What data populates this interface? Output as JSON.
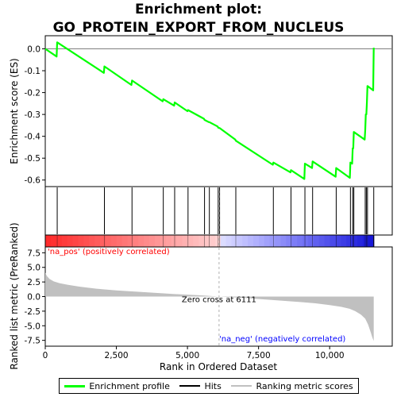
{
  "chart_data": {
    "type": "line",
    "title_line1": "Enrichment plot:",
    "title_line2": "GO_PROTEIN_EXPORT_FROM_NUCLEUS",
    "es_ylabel": "Enrichment score (ES)",
    "rank_ylabel": "Ranked list metric (PreRanked)",
    "xlabel": "Rank in Ordered Dataset",
    "x_ticks": [
      "0",
      "2,500",
      "5,000",
      "7,500",
      "10,000"
    ],
    "es_ticks": [
      "0.0",
      "-0.1",
      "-0.2",
      "-0.3",
      "-0.4",
      "-0.5",
      "-0.6"
    ],
    "rank_ticks": [
      "7.5",
      "5.0",
      "2.5",
      "0.0",
      "-2.5",
      "-5.0",
      "-7.5"
    ],
    "xlim": [
      0,
      12200
    ],
    "es_ylim": [
      -0.63,
      0.06
    ],
    "rank_ylim": [
      -8.5,
      8.5
    ],
    "n_genes": 11550,
    "zero_cross_rank": 6111,
    "zero_cross_label": "Zero cross at 6111",
    "pos_label": "'na_pos' (positively correlated)",
    "neg_label": "'na_neg' (negatively correlated)",
    "hits": [
      420,
      2080,
      3050,
      4150,
      4550,
      5020,
      5600,
      5770,
      6080,
      6130,
      6700,
      8020,
      8640,
      9130,
      9400,
      10230,
      10730,
      10810,
      10850,
      11250,
      11290,
      11330,
      11550
    ],
    "es_curve": {
      "x": [
        0,
        400,
        420,
        2060,
        2080,
        3030,
        3050,
        4130,
        4150,
        4530,
        4550,
        5000,
        5020,
        5580,
        5600,
        5750,
        5770,
        6060,
        6080,
        6110,
        6130,
        6680,
        6700,
        8000,
        8020,
        8620,
        8640,
        9110,
        9130,
        9380,
        9400,
        10210,
        10230,
        10710,
        10730,
        10790,
        10810,
        10830,
        10850,
        11230,
        11250,
        11270,
        11290,
        11310,
        11330,
        11530,
        11550
      ],
      "y": [
        0.0,
        -0.035,
        0.03,
        -0.11,
        -0.08,
        -0.165,
        -0.145,
        -0.24,
        -0.23,
        -0.26,
        -0.245,
        -0.285,
        -0.28,
        -0.32,
        -0.325,
        -0.335,
        -0.335,
        -0.355,
        -0.36,
        -0.362,
        -0.362,
        -0.415,
        -0.42,
        -0.53,
        -0.52,
        -0.565,
        -0.555,
        -0.595,
        -0.525,
        -0.545,
        -0.515,
        -0.585,
        -0.545,
        -0.59,
        -0.52,
        -0.525,
        -0.455,
        -0.455,
        -0.38,
        -0.415,
        -0.37,
        -0.3,
        -0.3,
        -0.245,
        -0.17,
        -0.19,
        0.005
      ]
    },
    "metric_curve": {
      "x": [
        0,
        60,
        150,
        300,
        500,
        800,
        1200,
        1800,
        2500,
        3500,
        4500,
        5500,
        6111,
        7000,
        8000,
        9000,
        9500,
        10000,
        10400,
        10700,
        10900,
        11100,
        11250,
        11350,
        11450,
        11500,
        11550
      ],
      "y": [
        4.1,
        3.5,
        3.0,
        2.6,
        2.3,
        2.0,
        1.7,
        1.35,
        1.05,
        0.75,
        0.45,
        0.2,
        0.0,
        -0.25,
        -0.6,
        -0.95,
        -1.15,
        -1.45,
        -1.75,
        -2.1,
        -2.5,
        -3.1,
        -3.8,
        -4.8,
        -6.2,
        -7.0,
        -7.6
      ]
    },
    "colors": {
      "es_line": "#00ff00",
      "hit_line": "#000000",
      "metric_fill": "#c0c0c0",
      "zero_line": "#b0b0b0",
      "pos_label": "#ff0000",
      "neg_label": "#0000ff",
      "zero_label": "#000000"
    }
  },
  "legend": {
    "profile_label": "Enrichment profile",
    "hits_label": "Hits",
    "metric_label": "Ranking metric scores"
  }
}
